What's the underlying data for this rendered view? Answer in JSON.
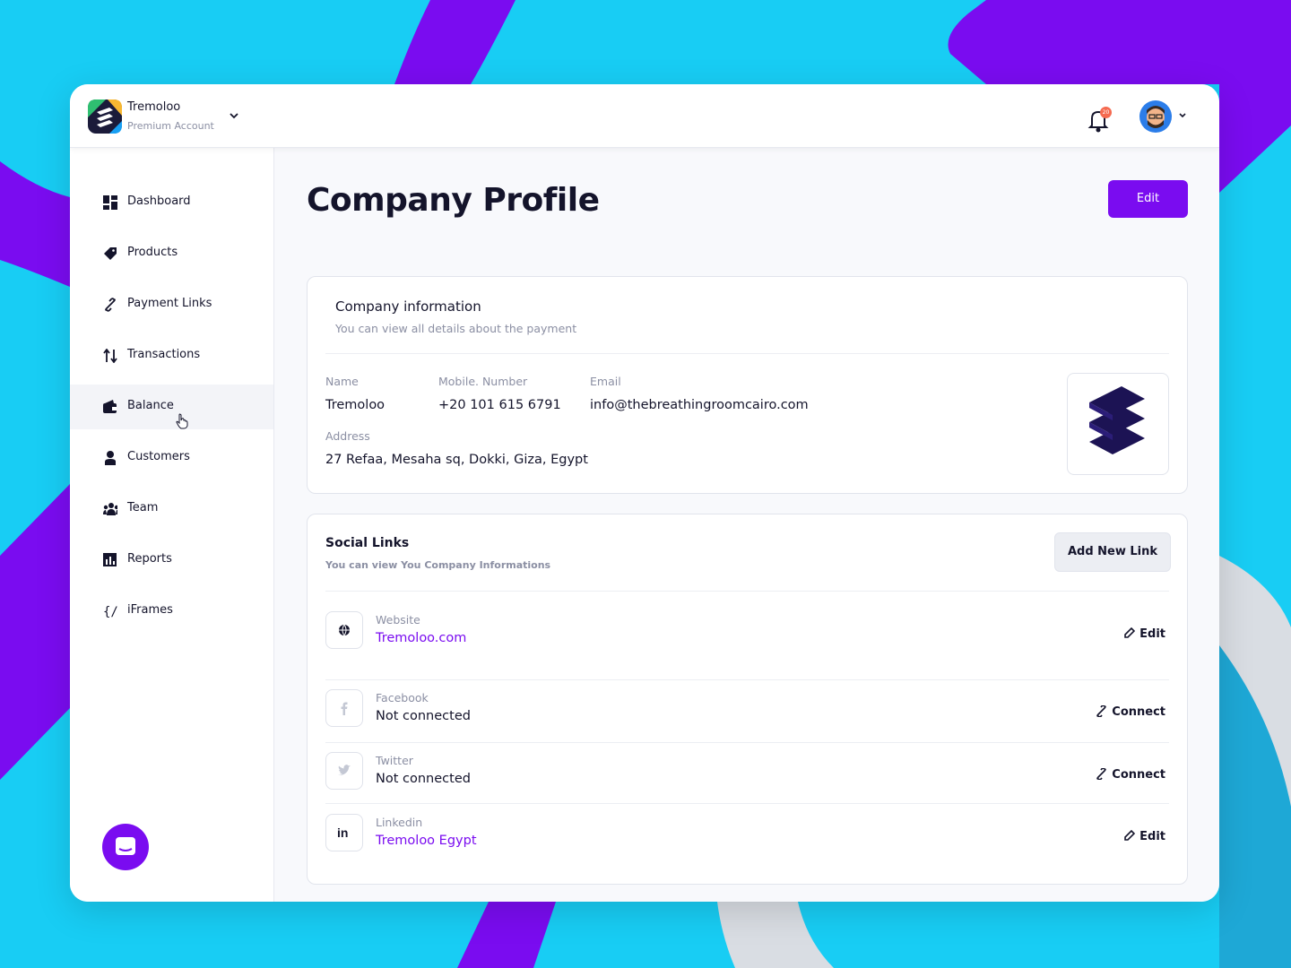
{
  "header": {
    "brand": "Tremoloo",
    "account": "Premium Account",
    "notifications": "20"
  },
  "sidebar": {
    "items": [
      "Dashboard",
      "Products",
      "Payment Links",
      "Transactions",
      "Balance",
      "Customers",
      "Team",
      "Reports",
      "iFrames"
    ]
  },
  "page": {
    "title": "Company Profile",
    "edit_button": "Edit"
  },
  "company_info": {
    "title": "Company information",
    "subtitle": "You can view all details about the payment",
    "fields": [
      {
        "label": "Name",
        "value": "Tremoloo"
      },
      {
        "label": "Mobile. Number",
        "value": "+20 101 615 6791"
      },
      {
        "label": "Email",
        "value": "info@thebreathingroomcairo.com"
      },
      {
        "label": "Address",
        "value": "27 Refaa, Mesaha sq, Dokki, Giza, Egypt"
      }
    ]
  },
  "social_links": {
    "title": "Social Links",
    "subtitle": "You can view You Company Informations",
    "add_button": "Add New Link",
    "links": [
      {
        "label": "Website",
        "value": "Tremoloo.com",
        "action": "Edit"
      },
      {
        "label": "Facebook",
        "value": "Not connected",
        "action": "Connect"
      },
      {
        "label": "Twitter",
        "value": "Not connected",
        "action": "Connect"
      },
      {
        "label": "Linkedin",
        "value": "Tremoloo Egypt",
        "action": "Edit"
      }
    ]
  }
}
